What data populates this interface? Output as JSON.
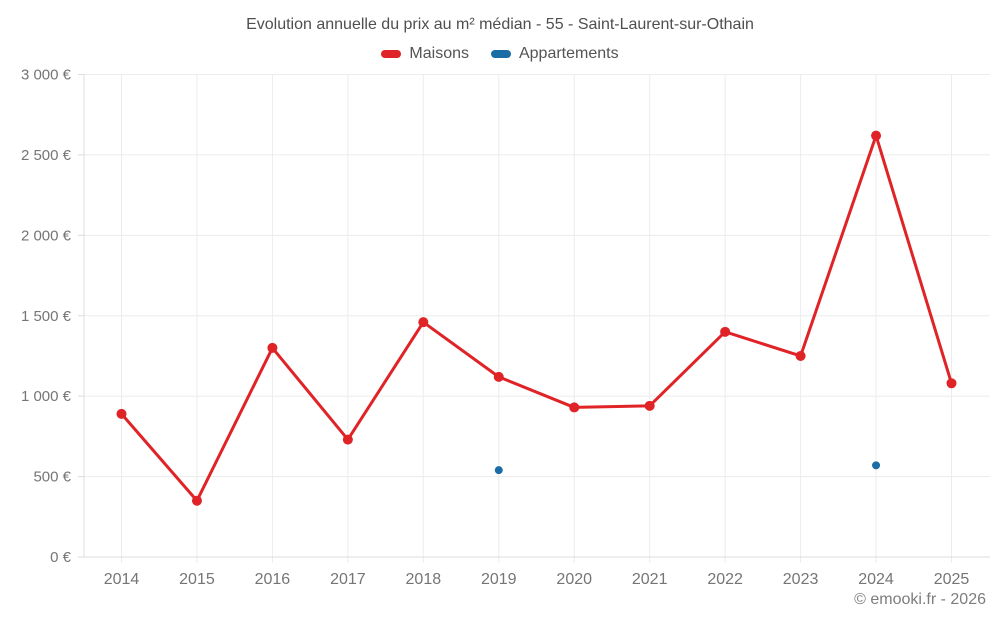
{
  "page": {
    "title": "Evolution annuelle du prix au m² médian - 55 - Saint-Laurent-sur-Othain",
    "footer": "© emooki.fr - 2026"
  },
  "legend": {
    "items": [
      {
        "label": "Maisons",
        "color": "#e02327"
      },
      {
        "label": "Appartements",
        "color": "#1b6da6"
      }
    ]
  },
  "chart_data": {
    "type": "line",
    "title": "Evolution annuelle du prix au m² médian - 55 - Saint-Laurent-sur-Othain",
    "categories": [
      "2014",
      "2015",
      "2016",
      "2017",
      "2018",
      "2019",
      "2020",
      "2021",
      "2022",
      "2023",
      "2024",
      "2025"
    ],
    "series": [
      {
        "name": "Maisons",
        "type": "line",
        "color": "#e02327",
        "marker_radius": 5,
        "line_width": 3,
        "values": [
          890,
          350,
          1300,
          730,
          1460,
          1120,
          930,
          940,
          1400,
          1250,
          2620,
          1080
        ]
      },
      {
        "name": "Appartements",
        "type": "scatter",
        "color": "#1b6da6",
        "marker_radius": 4,
        "line_width": 0,
        "values": [
          null,
          null,
          null,
          null,
          null,
          540,
          null,
          null,
          null,
          null,
          570,
          null
        ]
      }
    ],
    "xlabel": "",
    "ylabel": "",
    "ylim": [
      0,
      3000
    ],
    "ytick_step": 500,
    "yticks": [
      "0 €",
      "500 €",
      "1 000 €",
      "1 500 €",
      "2 000 €",
      "2 500 €",
      "3 000 €"
    ],
    "grid": true,
    "legend_position": "top",
    "colors": {
      "grid": "#ececec",
      "axis": "#dcdcdc",
      "tick_label": "#757575"
    }
  }
}
